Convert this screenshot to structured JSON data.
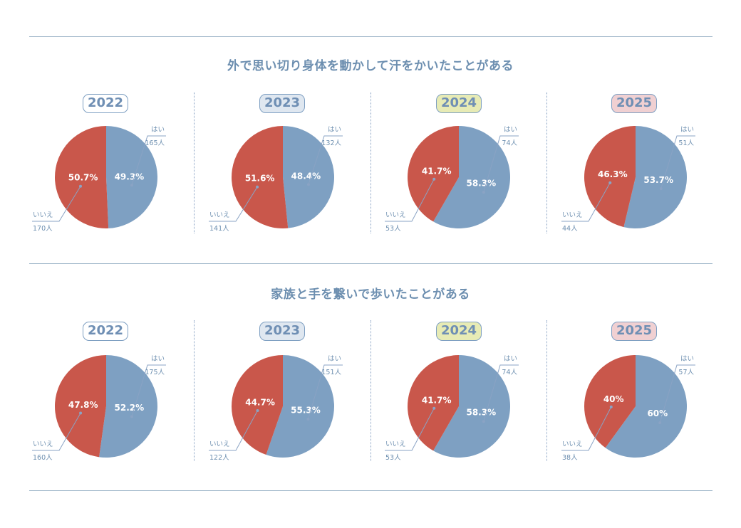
{
  "colors": {
    "yes": "#7ea0c2",
    "no": "#c9574b",
    "line": "#8aa3c4",
    "text": "#6d8fb0"
  },
  "sections": [
    {
      "title": "外で思い切り身体を動かして汗をかいたことがある",
      "charts": [
        {
          "year": "2022",
          "yes_label": "はい",
          "no_label": "いいえ",
          "yes_count": "165人",
          "no_count": "170人",
          "yes_pct": 49.3,
          "no_pct": 50.7,
          "yes_pct_text": "49.3%",
          "no_pct_text": "50.7%"
        },
        {
          "year": "2023",
          "yes_label": "はい",
          "no_label": "いいえ",
          "yes_count": "132人",
          "no_count": "141人",
          "yes_pct": 48.4,
          "no_pct": 51.6,
          "yes_pct_text": "48.4%",
          "no_pct_text": "51.6%"
        },
        {
          "year": "2024",
          "yes_label": "はい",
          "no_label": "いいえ",
          "yes_count": "74人",
          "no_count": "53人",
          "yes_pct": 58.3,
          "no_pct": 41.7,
          "yes_pct_text": "58.3%",
          "no_pct_text": "41.7%"
        },
        {
          "year": "2025",
          "yes_label": "はい",
          "no_label": "いいえ",
          "yes_count": "51人",
          "no_count": "44人",
          "yes_pct": 53.7,
          "no_pct": 46.3,
          "yes_pct_text": "53.7%",
          "no_pct_text": "46.3%"
        }
      ]
    },
    {
      "title": "家族と手を繋いで歩いたことがある",
      "charts": [
        {
          "year": "2022",
          "yes_label": "はい",
          "no_label": "いいえ",
          "yes_count": "175人",
          "no_count": "160人",
          "yes_pct": 52.2,
          "no_pct": 47.8,
          "yes_pct_text": "52.2%",
          "no_pct_text": "47.8%"
        },
        {
          "year": "2023",
          "yes_label": "はい",
          "no_label": "いいえ",
          "yes_count": "151人",
          "no_count": "122人",
          "yes_pct": 55.3,
          "no_pct": 44.7,
          "yes_pct_text": "55.3%",
          "no_pct_text": "44.7%"
        },
        {
          "year": "2024",
          "yes_label": "はい",
          "no_label": "いいえ",
          "yes_count": "74人",
          "no_count": "53人",
          "yes_pct": 58.3,
          "no_pct": 41.7,
          "yes_pct_text": "58.3%",
          "no_pct_text": "41.7%"
        },
        {
          "year": "2025",
          "yes_label": "はい",
          "no_label": "いいえ",
          "yes_count": "57人",
          "no_count": "38人",
          "yes_pct": 60,
          "no_pct": 40,
          "yes_pct_text": "60%",
          "no_pct_text": "40%"
        }
      ]
    }
  ],
  "chart_data": [
    {
      "type": "pie",
      "title": "外で思い切り身体を動かして汗をかいたことがある",
      "subtitle": "2022",
      "labels": [
        "はい",
        "いいえ"
      ],
      "values": [
        49.3,
        50.7
      ],
      "counts": [
        165,
        170
      ]
    },
    {
      "type": "pie",
      "title": "外で思い切り身体を動かして汗をかいたことがある",
      "subtitle": "2023",
      "labels": [
        "はい",
        "いいえ"
      ],
      "values": [
        48.4,
        51.6
      ],
      "counts": [
        132,
        141
      ]
    },
    {
      "type": "pie",
      "title": "外で思い切り身体を動かして汗をかいたことがある",
      "subtitle": "2024",
      "labels": [
        "はい",
        "いいえ"
      ],
      "values": [
        58.3,
        41.7
      ],
      "counts": [
        74,
        53
      ]
    },
    {
      "type": "pie",
      "title": "外で思い切り身体を動かして汗をかいたことがある",
      "subtitle": "2025",
      "labels": [
        "はい",
        "いいえ"
      ],
      "values": [
        53.7,
        46.3
      ],
      "counts": [
        51,
        44
      ]
    },
    {
      "type": "pie",
      "title": "家族と手を繋いで歩いたことがある",
      "subtitle": "2022",
      "labels": [
        "はい",
        "いいえ"
      ],
      "values": [
        52.2,
        47.8
      ],
      "counts": [
        175,
        160
      ]
    },
    {
      "type": "pie",
      "title": "家族と手を繋いで歩いたことがある",
      "subtitle": "2023",
      "labels": [
        "はい",
        "いいえ"
      ],
      "values": [
        55.3,
        44.7
      ],
      "counts": [
        151,
        122
      ]
    },
    {
      "type": "pie",
      "title": "家族と手を繋いで歩いたことがある",
      "subtitle": "2024",
      "labels": [
        "はい",
        "いいえ"
      ],
      "values": [
        58.3,
        41.7
      ],
      "counts": [
        74,
        53
      ]
    },
    {
      "type": "pie",
      "title": "家族と手を繋いで歩いたことがある",
      "subtitle": "2025",
      "labels": [
        "はい",
        "いいえ"
      ],
      "values": [
        60,
        40
      ],
      "counts": [
        57,
        38
      ]
    }
  ]
}
